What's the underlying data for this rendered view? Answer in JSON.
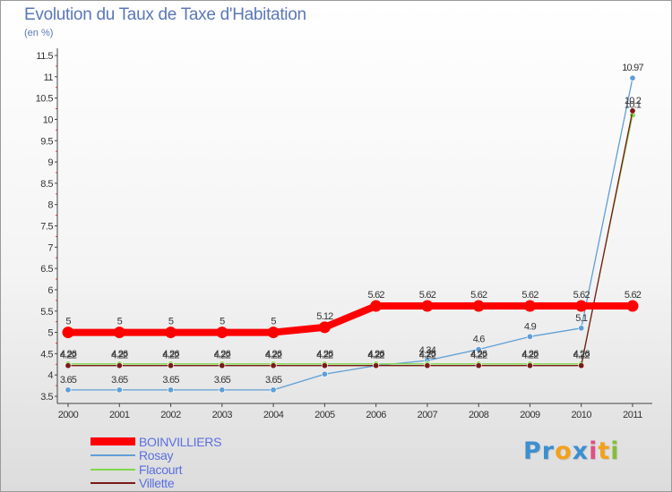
{
  "title": "Evolution du Taux de Taxe d'Habitation",
  "subtitle": "(en %)",
  "logo": {
    "letters": [
      "P",
      "r",
      "o",
      "x",
      "i",
      "t",
      "i"
    ],
    "colors": [
      "#3c8fd0",
      "#3c8fd0",
      "#f3a11c",
      "#3c8fd0",
      "#e04f86",
      "#f3a11c",
      "#86bd3b"
    ]
  },
  "chart_data": {
    "type": "line",
    "categories": [
      "2000",
      "2001",
      "2002",
      "2003",
      "2004",
      "2005",
      "2006",
      "2007",
      "2008",
      "2009",
      "2010",
      "2011"
    ],
    "ylim": [
      3.5,
      11.5
    ],
    "yticks": [
      "3.5",
      "4",
      "4.5",
      "5",
      "5.5",
      "6",
      "6.5",
      "7",
      "7.5",
      "8",
      "8.5",
      "9",
      "9.5",
      "10",
      "10.5",
      "11",
      "11.5"
    ],
    "grid": false,
    "legend_position": "bottom-left",
    "series": [
      {
        "name": "BOINVILLIERS",
        "color": "#ff0000",
        "values": [
          5,
          5,
          5,
          5,
          5,
          5.12,
          5.62,
          5.62,
          5.62,
          5.62,
          5.62,
          5.62
        ],
        "labels": [
          "5",
          "5",
          "5",
          "5",
          "5",
          "5.12",
          "5.62",
          "5.62",
          "5.62",
          "5.62",
          "5.62",
          "5.62"
        ]
      },
      {
        "name": "Rosay",
        "color": "#5f9fd6",
        "values": [
          3.65,
          3.65,
          3.65,
          3.65,
          3.65,
          4.02,
          4.22,
          4.34,
          4.6,
          4.9,
          5.1,
          10.97
        ],
        "labels": [
          "3.65",
          "3.65",
          "3.65",
          "3.65",
          "3.65",
          "",
          "4.22",
          "4.34",
          "4.6",
          "4.9",
          "5.1",
          "10.97"
        ]
      },
      {
        "name": "Flacourt",
        "color": "#7fd94a",
        "values": [
          4.26,
          4.26,
          4.26,
          4.26,
          4.26,
          4.26,
          4.26,
          4.26,
          4.26,
          4.26,
          4.26,
          10.1
        ],
        "labels": [
          "4.26",
          "4.26",
          "4.26",
          "4.26",
          "4.26",
          "4.26",
          "4.26",
          "4.26",
          "4.26",
          "4.26",
          "4.26",
          "10.1"
        ]
      },
      {
        "name": "Villette",
        "color": "#7a1a1a",
        "values": [
          4.22,
          4.22,
          4.22,
          4.22,
          4.22,
          4.22,
          4.22,
          4.22,
          4.22,
          4.22,
          4.22,
          10.2
        ],
        "labels": [
          "4.22",
          "4.22",
          "4.22",
          "4.22",
          "4.22",
          "4.22",
          "4.22",
          "4.22",
          "4.22",
          "4.22",
          "4.22",
          "10.2"
        ]
      }
    ]
  }
}
